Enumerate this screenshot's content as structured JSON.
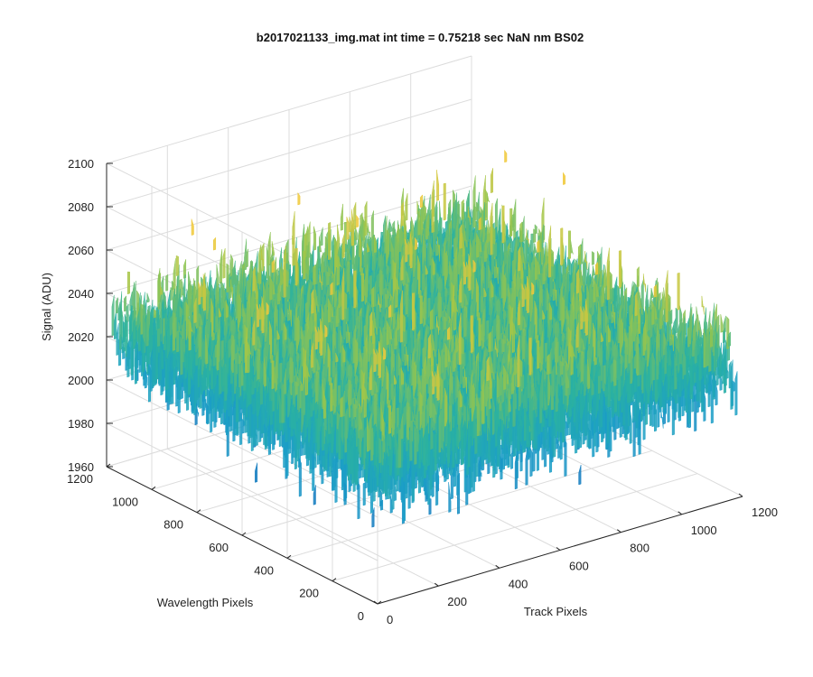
{
  "chart_data": {
    "type": "surface",
    "title": "b2017021133_img.mat int time = 0.75218 sec  NaN nm BS02",
    "xlabel": "Track Pixels",
    "ylabel": "Wavelength Pixels",
    "zlabel": "Signal (ADU)",
    "xlim": [
      0,
      1200
    ],
    "ylim": [
      0,
      1200
    ],
    "zlim": [
      1960,
      2100
    ],
    "xticks": [
      0,
      200,
      400,
      600,
      800,
      1000,
      1200
    ],
    "yticks": [
      0,
      200,
      400,
      600,
      800,
      1000,
      1200
    ],
    "zticks": [
      1960,
      1980,
      2000,
      2020,
      2040,
      2060,
      2080,
      2100
    ],
    "grid": true,
    "colormap": "parula",
    "surface_mean": 2025,
    "surface_range": [
      1965,
      2090
    ],
    "colors": {
      "axis": "#262626",
      "grid": "#dcdcdc",
      "colormap_low": "#0e72bd",
      "colormap_mid": "#2bb2a0",
      "colormap_high": "#f0c93a"
    }
  }
}
